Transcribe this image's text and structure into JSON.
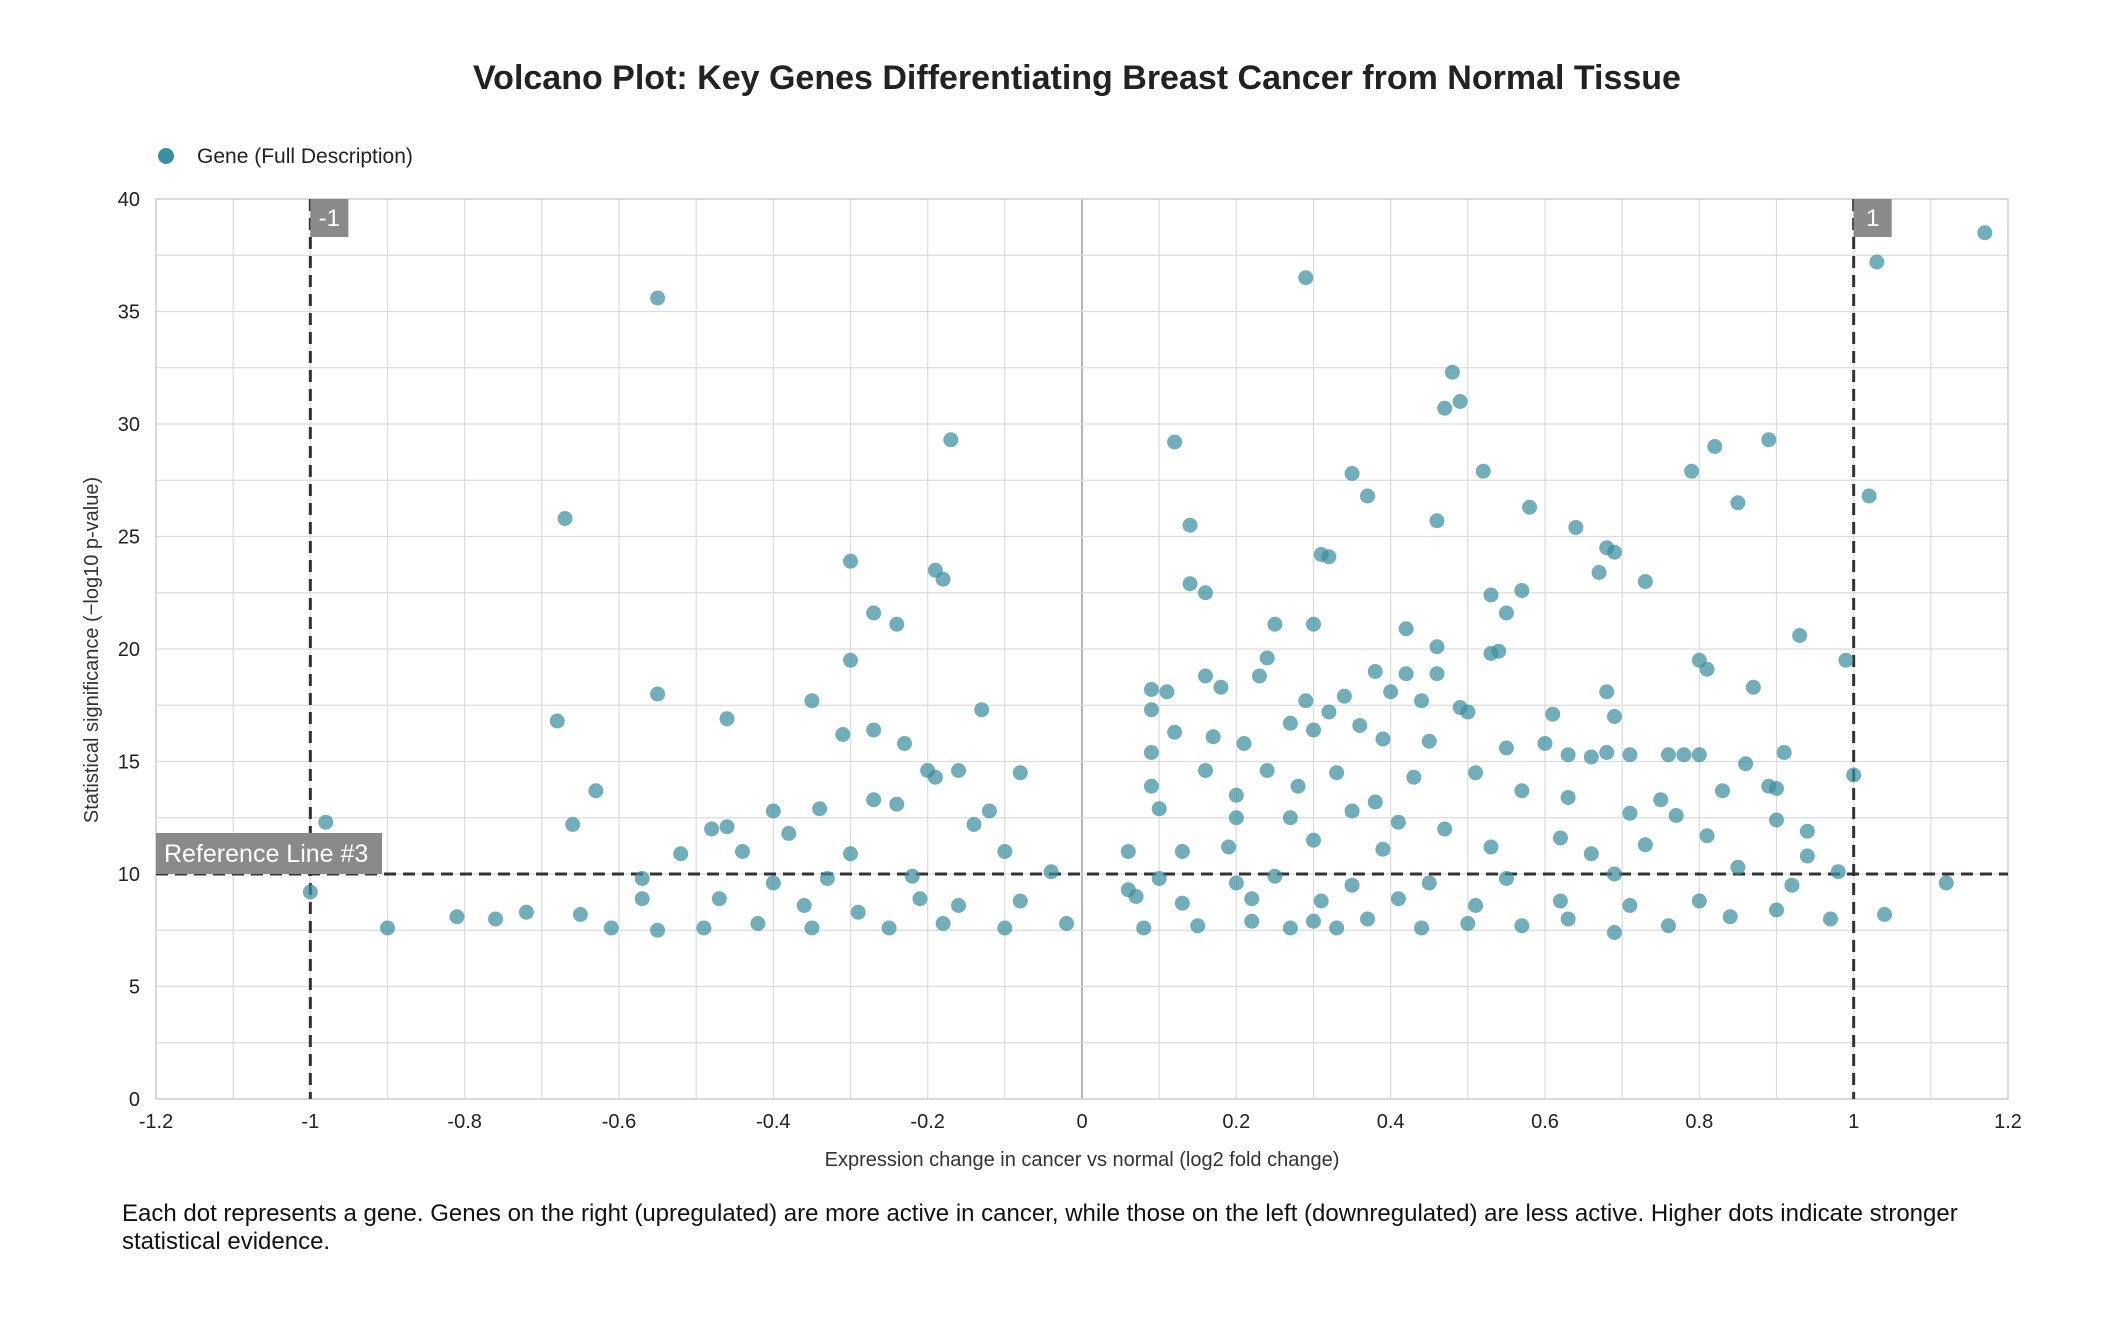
{
  "chart_data": {
    "type": "scatter",
    "title": "Volcano Plot: Key Genes Differentiating Breast Cancer from Normal Tissue",
    "xlabel": "Expression change in cancer vs normal (log2 fold change)",
    "ylabel": "Statistical significance (−log10 p-value)",
    "xlim": [
      -1.2,
      1.2
    ],
    "ylim": [
      0,
      40
    ],
    "x_ticks": [
      -1.2,
      -1,
      -0.8,
      -0.6,
      -0.4,
      -0.2,
      0,
      0.2,
      0.4,
      0.6,
      0.8,
      1,
      1.2
    ],
    "y_ticks": [
      0,
      5,
      10,
      15,
      20,
      25,
      30,
      35,
      40
    ],
    "grid": true,
    "legend": {
      "position": "top-left",
      "entries": [
        "Gene (Full Description)"
      ]
    },
    "point_color": "#3a8fa0",
    "reference_lines": [
      {
        "orientation": "vertical",
        "value": -1,
        "label": "-1"
      },
      {
        "orientation": "vertical",
        "value": 1,
        "label": "1"
      },
      {
        "orientation": "horizontal",
        "value": 10,
        "label": "Reference Line #3"
      }
    ],
    "series": [
      {
        "name": "Gene (Full Description)",
        "points": [
          [
            1.17,
            38.5
          ],
          [
            1.03,
            37.2
          ],
          [
            0.29,
            36.5
          ],
          [
            -0.55,
            35.6
          ],
          [
            0.48,
            32.3
          ],
          [
            0.49,
            31.0
          ],
          [
            0.47,
            30.7
          ],
          [
            -0.17,
            29.3
          ],
          [
            0.12,
            29.2
          ],
          [
            0.89,
            29.3
          ],
          [
            0.82,
            29.0
          ],
          [
            0.35,
            27.8
          ],
          [
            0.52,
            27.9
          ],
          [
            0.79,
            27.9
          ],
          [
            1.02,
            26.8
          ],
          [
            0.37,
            26.8
          ],
          [
            0.85,
            26.5
          ],
          [
            0.58,
            26.3
          ],
          [
            -0.67,
            25.8
          ],
          [
            0.14,
            25.5
          ],
          [
            0.46,
            25.7
          ],
          [
            0.64,
            25.4
          ],
          [
            0.68,
            24.5
          ],
          [
            0.69,
            24.3
          ],
          [
            0.31,
            24.2
          ],
          [
            0.32,
            24.1
          ],
          [
            -0.3,
            23.9
          ],
          [
            -0.19,
            23.5
          ],
          [
            -0.18,
            23.1
          ],
          [
            0.67,
            23.4
          ],
          [
            0.14,
            22.9
          ],
          [
            0.16,
            22.5
          ],
          [
            0.73,
            23.0
          ],
          [
            0.53,
            22.4
          ],
          [
            0.57,
            22.6
          ],
          [
            0.55,
            21.6
          ],
          [
            -0.27,
            21.6
          ],
          [
            -0.24,
            21.1
          ],
          [
            0.25,
            21.1
          ],
          [
            0.3,
            21.1
          ],
          [
            0.42,
            20.9
          ],
          [
            0.93,
            20.6
          ],
          [
            0.46,
            20.1
          ],
          [
            0.53,
            19.8
          ],
          [
            0.54,
            19.9
          ],
          [
            0.8,
            19.5
          ],
          [
            0.81,
            19.1
          ],
          [
            0.99,
            19.5
          ],
          [
            -0.3,
            19.5
          ],
          [
            0.24,
            19.6
          ],
          [
            0.23,
            18.8
          ],
          [
            0.16,
            18.8
          ],
          [
            0.38,
            19.0
          ],
          [
            0.42,
            18.9
          ],
          [
            0.46,
            18.9
          ],
          [
            0.09,
            18.2
          ],
          [
            0.11,
            18.1
          ],
          [
            0.18,
            18.3
          ],
          [
            0.68,
            18.1
          ],
          [
            0.87,
            18.3
          ],
          [
            -0.55,
            18.0
          ],
          [
            -0.35,
            17.7
          ],
          [
            0.29,
            17.7
          ],
          [
            0.34,
            17.9
          ],
          [
            0.4,
            18.1
          ],
          [
            0.44,
            17.7
          ],
          [
            0.49,
            17.4
          ],
          [
            -0.68,
            16.8
          ],
          [
            -0.46,
            16.9
          ],
          [
            -0.13,
            17.3
          ],
          [
            0.09,
            17.3
          ],
          [
            0.3,
            16.4
          ],
          [
            0.32,
            17.2
          ],
          [
            0.36,
            16.6
          ],
          [
            0.5,
            17.2
          ],
          [
            0.61,
            17.1
          ],
          [
            0.69,
            17.0
          ],
          [
            -0.31,
            16.2
          ],
          [
            -0.27,
            16.4
          ],
          [
            -0.23,
            15.8
          ],
          [
            0.12,
            16.3
          ],
          [
            0.27,
            16.7
          ],
          [
            0.17,
            16.1
          ],
          [
            0.21,
            15.8
          ],
          [
            0.39,
            16.0
          ],
          [
            0.45,
            15.9
          ],
          [
            0.55,
            15.6
          ],
          [
            0.6,
            15.8
          ],
          [
            0.63,
            15.3
          ],
          [
            0.66,
            15.2
          ],
          [
            0.68,
            15.4
          ],
          [
            0.71,
            15.3
          ],
          [
            0.76,
            15.3
          ],
          [
            0.78,
            15.3
          ],
          [
            0.8,
            15.3
          ],
          [
            0.86,
            14.9
          ],
          [
            0.91,
            15.4
          ],
          [
            1.0,
            14.4
          ],
          [
            -0.2,
            14.6
          ],
          [
            -0.19,
            14.3
          ],
          [
            -0.16,
            14.6
          ],
          [
            -0.08,
            14.5
          ],
          [
            0.09,
            15.4
          ],
          [
            0.16,
            14.6
          ],
          [
            0.24,
            14.6
          ],
          [
            0.33,
            14.5
          ],
          [
            0.43,
            14.3
          ],
          [
            0.51,
            14.5
          ],
          [
            -0.63,
            13.7
          ],
          [
            -0.34,
            12.9
          ],
          [
            -0.27,
            13.3
          ],
          [
            -0.24,
            13.1
          ],
          [
            0.09,
            13.9
          ],
          [
            0.2,
            13.5
          ],
          [
            0.28,
            13.9
          ],
          [
            0.38,
            13.2
          ],
          [
            0.57,
            13.7
          ],
          [
            0.63,
            13.4
          ],
          [
            0.75,
            13.3
          ],
          [
            0.83,
            13.7
          ],
          [
            0.89,
            13.9
          ],
          [
            0.9,
            13.8
          ],
          [
            -0.98,
            12.3
          ],
          [
            -0.66,
            12.2
          ],
          [
            -0.48,
            12.0
          ],
          [
            -0.46,
            12.1
          ],
          [
            -0.4,
            12.8
          ],
          [
            -0.12,
            12.8
          ],
          [
            -0.14,
            12.2
          ],
          [
            0.1,
            12.9
          ],
          [
            0.2,
            12.5
          ],
          [
            0.27,
            12.5
          ],
          [
            0.35,
            12.8
          ],
          [
            0.41,
            12.3
          ],
          [
            0.47,
            12.0
          ],
          [
            0.62,
            11.6
          ],
          [
            0.71,
            12.7
          ],
          [
            0.77,
            12.6
          ],
          [
            0.81,
            11.7
          ],
          [
            0.9,
            12.4
          ],
          [
            0.94,
            11.9
          ],
          [
            -0.52,
            10.9
          ],
          [
            -0.44,
            11.0
          ],
          [
            -0.38,
            11.8
          ],
          [
            -0.3,
            10.9
          ],
          [
            -0.1,
            11.0
          ],
          [
            0.06,
            11.0
          ],
          [
            0.13,
            11.0
          ],
          [
            0.19,
            11.2
          ],
          [
            0.3,
            11.5
          ],
          [
            0.39,
            11.1
          ],
          [
            0.53,
            11.2
          ],
          [
            0.66,
            10.9
          ],
          [
            0.73,
            11.3
          ],
          [
            0.85,
            10.3
          ],
          [
            0.94,
            10.8
          ],
          [
            -0.57,
            9.8
          ],
          [
            -0.4,
            9.6
          ],
          [
            -0.33,
            9.8
          ],
          [
            -0.22,
            9.9
          ],
          [
            -0.04,
            10.1
          ],
          [
            0.06,
            9.3
          ],
          [
            0.1,
            9.8
          ],
          [
            0.2,
            9.6
          ],
          [
            0.25,
            9.9
          ],
          [
            0.35,
            9.5
          ],
          [
            0.45,
            9.6
          ],
          [
            0.55,
            9.8
          ],
          [
            0.69,
            10.0
          ],
          [
            0.98,
            10.1
          ],
          [
            0.92,
            9.5
          ],
          [
            1.12,
            9.6
          ],
          [
            -1.0,
            9.2
          ],
          [
            -0.57,
            8.9
          ],
          [
            -0.47,
            8.9
          ],
          [
            -0.36,
            8.6
          ],
          [
            -0.29,
            8.3
          ],
          [
            -0.21,
            8.9
          ],
          [
            -0.16,
            8.6
          ],
          [
            -0.08,
            8.8
          ],
          [
            0.07,
            9.0
          ],
          [
            0.13,
            8.7
          ],
          [
            0.22,
            8.9
          ],
          [
            0.31,
            8.8
          ],
          [
            0.41,
            8.9
          ],
          [
            0.51,
            8.6
          ],
          [
            0.62,
            8.8
          ],
          [
            0.71,
            8.6
          ],
          [
            0.8,
            8.8
          ],
          [
            0.9,
            8.4
          ],
          [
            1.04,
            8.2
          ],
          [
            0.97,
            8.0
          ],
          [
            -0.9,
            7.6
          ],
          [
            -0.81,
            8.1
          ],
          [
            -0.76,
            8.0
          ],
          [
            -0.72,
            8.3
          ],
          [
            -0.65,
            8.2
          ],
          [
            -0.61,
            7.6
          ],
          [
            -0.55,
            7.5
          ],
          [
            -0.49,
            7.6
          ],
          [
            -0.42,
            7.8
          ],
          [
            -0.35,
            7.6
          ],
          [
            -0.25,
            7.6
          ],
          [
            -0.18,
            7.8
          ],
          [
            -0.1,
            7.6
          ],
          [
            -0.02,
            7.8
          ],
          [
            0.08,
            7.6
          ],
          [
            0.15,
            7.7
          ],
          [
            0.22,
            7.9
          ],
          [
            0.27,
            7.6
          ],
          [
            0.3,
            7.9
          ],
          [
            0.33,
            7.6
          ],
          [
            0.37,
            8.0
          ],
          [
            0.44,
            7.6
          ],
          [
            0.5,
            7.8
          ],
          [
            0.57,
            7.7
          ],
          [
            0.63,
            8.0
          ],
          [
            0.69,
            7.4
          ],
          [
            0.76,
            7.7
          ],
          [
            0.84,
            8.1
          ]
        ]
      }
    ],
    "caption": "Each dot represents a gene. Genes on the right (upregulated) are more active in cancer, while those on the left (downregulated) are less active. Higher dots indicate stronger statistical evidence."
  }
}
